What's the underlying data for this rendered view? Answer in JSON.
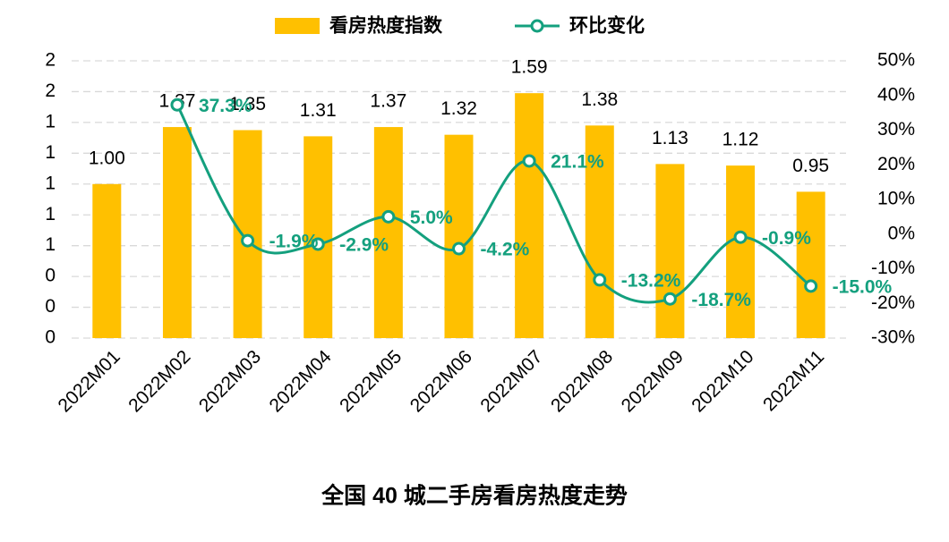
{
  "chart_data": {
    "type": "bar",
    "title": "全国 40 城二手房看房热度走势",
    "categories": [
      "2022M01",
      "2022M02",
      "2022M03",
      "2022M04",
      "2022M05",
      "2022M06",
      "2022M07",
      "2022M08",
      "2022M09",
      "2022M10",
      "2022M11"
    ],
    "series": [
      {
        "name": "看房热度指数",
        "type": "bar",
        "color": "#FFC000",
        "values": [
          1.0,
          1.37,
          1.35,
          1.31,
          1.37,
          1.32,
          1.59,
          1.38,
          1.13,
          1.12,
          0.95
        ],
        "value_labels": [
          "1.00",
          "1.37",
          "1.35",
          "1.31",
          "1.37",
          "1.32",
          "1.59",
          "1.38",
          "1.13",
          "1.12",
          "0.95"
        ]
      },
      {
        "name": "环比变化",
        "type": "line",
        "axis": "y2",
        "color": "#14A07E",
        "values": [
          null,
          37.3,
          -1.9,
          -2.9,
          5.0,
          -4.2,
          21.1,
          -13.2,
          -18.7,
          -0.9,
          -15.0
        ],
        "value_labels": [
          null,
          "37.3%",
          "-1.9%",
          "-2.9%",
          "5.0%",
          "-4.2%",
          "21.1%",
          "-13.2%",
          "-18.7%",
          "-0.9%",
          "-15.0%"
        ]
      }
    ],
    "ylim": [
      0,
      1.8
    ],
    "yticks": [
      {
        "value": 0,
        "label": "0"
      },
      {
        "value": 0.2,
        "label": "0"
      },
      {
        "value": 0.4,
        "label": "0"
      },
      {
        "value": 0.6,
        "label": "1"
      },
      {
        "value": 0.8,
        "label": "1"
      },
      {
        "value": 1.0,
        "label": "1"
      },
      {
        "value": 1.2,
        "label": "1"
      },
      {
        "value": 1.4,
        "label": "1"
      },
      {
        "value": 1.6,
        "label": "2"
      },
      {
        "value": 1.8,
        "label": "2"
      }
    ],
    "y2lim": [
      -30,
      50
    ],
    "y2ticks": [
      {
        "value": -30,
        "label": "-30%"
      },
      {
        "value": -20,
        "label": "-20%"
      },
      {
        "value": -10,
        "label": "-10%"
      },
      {
        "value": 0,
        "label": "0%"
      },
      {
        "value": 10,
        "label": "10%"
      },
      {
        "value": 20,
        "label": "20%"
      },
      {
        "value": 30,
        "label": "30%"
      },
      {
        "value": 40,
        "label": "40%"
      },
      {
        "value": 50,
        "label": "50%"
      }
    ],
    "grid": true,
    "legend": "top"
  }
}
